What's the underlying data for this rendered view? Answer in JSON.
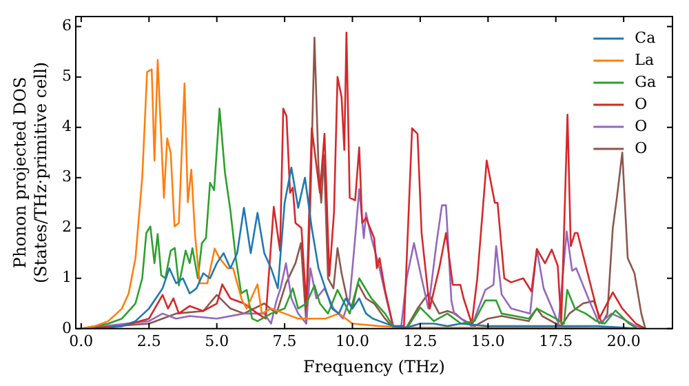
{
  "chart_data": {
    "type": "line",
    "xlabel": "Frequency (THz)",
    "ylabel": "Phonon projected DOS\n(States/THz·primitive cell)",
    "xlim": [
      -0.2,
      21.8
    ],
    "ylim": [
      0,
      6.2
    ],
    "xticks": [
      {
        "value": 0,
        "label": "0.0"
      },
      {
        "value": 2.5,
        "label": "2.5"
      },
      {
        "value": 5,
        "label": "5.0"
      },
      {
        "value": 7.5,
        "label": "7.5"
      },
      {
        "value": 10,
        "label": "10.0"
      },
      {
        "value": 12.5,
        "label": "12.5"
      },
      {
        "value": 15,
        "label": "15.0"
      },
      {
        "value": 17.5,
        "label": "17.5"
      },
      {
        "value": 20,
        "label": "20.0"
      }
    ],
    "yticks": [
      0,
      1,
      2,
      3,
      4,
      5,
      6
    ],
    "grid": false,
    "legend": "top right",
    "marker": "none",
    "line_style": "solid",
    "series": [
      {
        "name": "Ca",
        "color": "#1f77b4",
        "x": [
          1,
          1.5,
          2,
          2.5,
          2.75,
          3.0,
          3.25,
          3.5,
          3.75,
          4.0,
          4.25,
          4.5,
          4.75,
          5.0,
          5.25,
          5.5,
          5.75,
          6.0,
          6.25,
          6.5,
          6.75,
          7.0,
          7.25,
          7.5,
          7.75,
          8.0,
          8.25,
          8.5,
          8.75,
          9.0,
          9.25,
          9.5,
          9.75,
          10.0,
          10.25,
          10.5,
          10.75,
          11.0,
          11.5,
          12.0,
          12.5,
          13.0,
          13.5,
          14.0,
          15.0,
          16.0,
          17.0,
          18.0,
          19.0,
          20.0,
          20.5
        ],
        "values": [
          0.02,
          0.05,
          0.15,
          0.4,
          0.6,
          0.8,
          1.2,
          0.9,
          1.0,
          0.7,
          0.8,
          1.1,
          1.0,
          1.3,
          1.5,
          1.2,
          1.5,
          2.4,
          1.5,
          2.3,
          1.5,
          1.2,
          0.8,
          2.5,
          3.2,
          2.4,
          3.0,
          2.0,
          1.2,
          0.8,
          0.4,
          0.3,
          0.6,
          0.4,
          0.6,
          0.3,
          0.2,
          0.15,
          0.05,
          0.02,
          0.1,
          0.1,
          0.05,
          0.1,
          0.05,
          0.05,
          0.05,
          0.05,
          0.05,
          0.02,
          0
        ]
      },
      {
        "name": "La",
        "color": "#ff7f0e",
        "x": [
          0,
          0.5,
          1.0,
          1.5,
          1.75,
          2.0,
          2.25,
          2.43,
          2.6,
          2.7,
          2.82,
          3.05,
          3.17,
          3.3,
          3.44,
          3.6,
          3.81,
          3.93,
          4.06,
          4.2,
          4.37,
          4.65,
          4.92,
          5.1,
          5.4,
          5.6,
          5.93,
          6.1,
          6.5,
          6.66,
          7.0,
          7.5,
          8.0,
          9.0,
          9.5,
          10.0,
          11.0,
          12.0,
          15.0,
          18.0,
          20.5
        ],
        "values": [
          0,
          0.05,
          0.15,
          0.4,
          0.7,
          1.4,
          3.0,
          5.1,
          5.15,
          3.34,
          5.34,
          2.6,
          3.78,
          3.49,
          2.03,
          2.1,
          4.87,
          2.51,
          3.16,
          1.84,
          0.9,
          0.9,
          1.59,
          1.4,
          1.2,
          1.2,
          0.56,
          0.4,
          0.88,
          0.3,
          0.4,
          0.3,
          0.2,
          0.2,
          0.3,
          0.1,
          0.05,
          0.02,
          0.02,
          0.02,
          0
        ]
      },
      {
        "name": "Ga",
        "color": "#2ca02c",
        "x": [
          0,
          1,
          1.5,
          2.0,
          2.25,
          2.4,
          2.55,
          2.7,
          2.82,
          2.95,
          3.1,
          3.3,
          3.45,
          3.6,
          3.85,
          4.0,
          4.1,
          4.3,
          4.45,
          4.6,
          4.75,
          4.9,
          5.1,
          5.3,
          5.5,
          5.7,
          5.9,
          6.1,
          6.3,
          6.5,
          7.0,
          7.5,
          7.8,
          8.0,
          8.3,
          8.6,
          8.8,
          9.1,
          9.45,
          9.9,
          10.25,
          10.7,
          11.2,
          11.5,
          12.0,
          12.5,
          13.0,
          13.5,
          14.0,
          14.5,
          14.9,
          15.3,
          15.5,
          16.0,
          16.5,
          16.8,
          17.5,
          17.8,
          17.92,
          18.2,
          18.6,
          19.0,
          19.3,
          19.7,
          20.2,
          20.5
        ],
        "values": [
          0,
          0.1,
          0.2,
          0.5,
          1.0,
          1.9,
          2.03,
          1.3,
          1.88,
          1.06,
          1.0,
          1.55,
          1.6,
          0.86,
          1.55,
          1.3,
          1.6,
          1.0,
          1.7,
          1.8,
          2.9,
          2.75,
          4.37,
          3.1,
          2.35,
          1.4,
          0.7,
          0.77,
          0.2,
          0.15,
          0.3,
          0.4,
          0.8,
          0.4,
          0.5,
          0.86,
          0.5,
          0.3,
          0.77,
          0.3,
          1.0,
          0.6,
          0.3,
          0.05,
          0,
          0.42,
          0.15,
          0.3,
          0.1,
          0.15,
          0.56,
          0.56,
          0.3,
          0.25,
          0.2,
          0.4,
          0.2,
          0.1,
          0.77,
          0.4,
          0.3,
          0.15,
          0.1,
          0.36,
          0.1,
          0
        ]
      },
      {
        "name": "O",
        "color": "#d62728",
        "x": [
          0,
          1.5,
          2.5,
          3.0,
          3.2,
          3.4,
          3.6,
          4.0,
          4.5,
          5.0,
          5.2,
          5.5,
          6.0,
          6.5,
          6.8,
          7.1,
          7.33,
          7.45,
          7.57,
          7.7,
          7.8,
          7.9,
          8.12,
          8.3,
          8.5,
          8.8,
          8.97,
          9.15,
          9.32,
          9.45,
          9.6,
          9.7,
          9.78,
          9.9,
          10.1,
          10.25,
          10.36,
          10.5,
          10.8,
          10.9,
          11.0,
          11.2,
          11.5,
          11.9,
          12.2,
          12.4,
          12.55,
          12.85,
          13.2,
          13.45,
          13.7,
          13.98,
          14.1,
          14.4,
          14.6,
          14.95,
          15.25,
          15.35,
          15.6,
          15.85,
          16.3,
          16.6,
          16.8,
          17.1,
          17.35,
          17.57,
          17.7,
          17.93,
          18.05,
          18.2,
          18.3,
          18.86,
          19.1,
          19.6,
          19.95,
          20.45,
          20.8
        ],
        "values": [
          0,
          0.05,
          0.2,
          0.67,
          0.4,
          0.6,
          0.3,
          0.45,
          0.35,
          0.5,
          0.88,
          0.6,
          0.5,
          0.3,
          0.2,
          2.42,
          1.55,
          4.37,
          4.22,
          2.7,
          2.8,
          2.1,
          2.0,
          0.45,
          3.98,
          2.7,
          3.87,
          1.05,
          2.3,
          5.0,
          4.6,
          3.55,
          5.88,
          2.6,
          2.55,
          3.6,
          2.1,
          2.2,
          1.8,
          1.2,
          1.4,
          0.77,
          0.05,
          0.05,
          3.98,
          3.87,
          1.9,
          0.4,
          1.2,
          1.9,
          0.87,
          0.87,
          0.6,
          0.1,
          0.98,
          3.34,
          2.5,
          2.5,
          1.0,
          0.92,
          1.0,
          0.74,
          1.58,
          1.3,
          1.57,
          1.25,
          0.1,
          4.25,
          1.64,
          1.9,
          1.9,
          0.7,
          0.2,
          0.72,
          0.4,
          0.1,
          0
        ]
      },
      {
        "name": "O",
        "color": "#9467bd",
        "x": [
          0,
          2.5,
          3.0,
          3.5,
          4.0,
          5.0,
          6.0,
          6.75,
          7.0,
          7.2,
          7.35,
          7.55,
          7.75,
          8.0,
          8.3,
          8.45,
          8.67,
          8.97,
          9.3,
          9.65,
          9.9,
          10.1,
          10.25,
          10.42,
          10.5,
          10.7,
          11.0,
          11.25,
          11.5,
          11.8,
          12.0,
          12.27,
          12.55,
          12.8,
          13.1,
          13.3,
          13.45,
          13.65,
          13.75,
          14.0,
          14.4,
          14.9,
          15.2,
          15.3,
          15.5,
          15.85,
          16.55,
          16.8,
          17.05,
          17.6,
          17.9,
          18.1,
          18.25,
          18.7,
          19.1,
          19.55,
          19.95,
          20.45,
          20.8
        ],
        "values": [
          0,
          0.15,
          0.3,
          0.2,
          0.25,
          0.2,
          0.3,
          0.3,
          0.1,
          0.56,
          0.8,
          1.3,
          0.6,
          0.3,
          0.1,
          1.2,
          0.6,
          0.8,
          0.4,
          0.2,
          0.6,
          1.8,
          2.77,
          1.8,
          2.3,
          1.8,
          1.2,
          0.6,
          0.05,
          0.05,
          1.0,
          1.7,
          1.0,
          0.4,
          1.7,
          2.45,
          2.45,
          0.55,
          0.3,
          0.2,
          0.05,
          0.77,
          0.87,
          1.64,
          0.68,
          0.4,
          0.3,
          1.58,
          0.8,
          0.1,
          1.93,
          1.15,
          1.2,
          0.6,
          0.1,
          0.3,
          0.2,
          0.05,
          0
        ]
      },
      {
        "name": "O",
        "color": "#8c564b",
        "x": [
          0,
          2.5,
          3.5,
          4.5,
          5.0,
          5.5,
          6.0,
          6.75,
          7.2,
          7.55,
          7.9,
          8.1,
          8.3,
          8.45,
          8.6,
          8.75,
          8.85,
          8.95,
          9.1,
          9.3,
          9.45,
          9.6,
          9.8,
          10.0,
          10.2,
          10.5,
          10.8,
          11.2,
          11.5,
          12.0,
          12.4,
          12.8,
          13.2,
          13.5,
          13.8,
          14.0,
          14.5,
          15.0,
          15.5,
          16.0,
          16.5,
          16.8,
          17.0,
          17.5,
          17.7,
          18.0,
          18.5,
          18.9,
          19.2,
          19.4,
          19.6,
          19.75,
          19.95,
          20.15,
          20.4,
          20.65,
          20.8
        ],
        "values": [
          0,
          0.1,
          0.3,
          0.35,
          0.67,
          0.4,
          0.3,
          0.5,
          0.3,
          0.9,
          1.3,
          1.7,
          0.1,
          2.5,
          5.78,
          3.2,
          2.5,
          3.45,
          1.0,
          0.8,
          1.6,
          1.1,
          0.6,
          0.4,
          0.9,
          0.6,
          0.5,
          0.2,
          0.02,
          0.03,
          0.4,
          0.7,
          0.3,
          0.35,
          0.3,
          0.2,
          0.05,
          0.2,
          0.25,
          0.2,
          0.15,
          0.4,
          0.25,
          0.1,
          0.05,
          0.3,
          0.5,
          0.55,
          0.1,
          0.3,
          2.0,
          2.6,
          3.5,
          1.4,
          1.1,
          0.3,
          0
        ]
      }
    ]
  }
}
